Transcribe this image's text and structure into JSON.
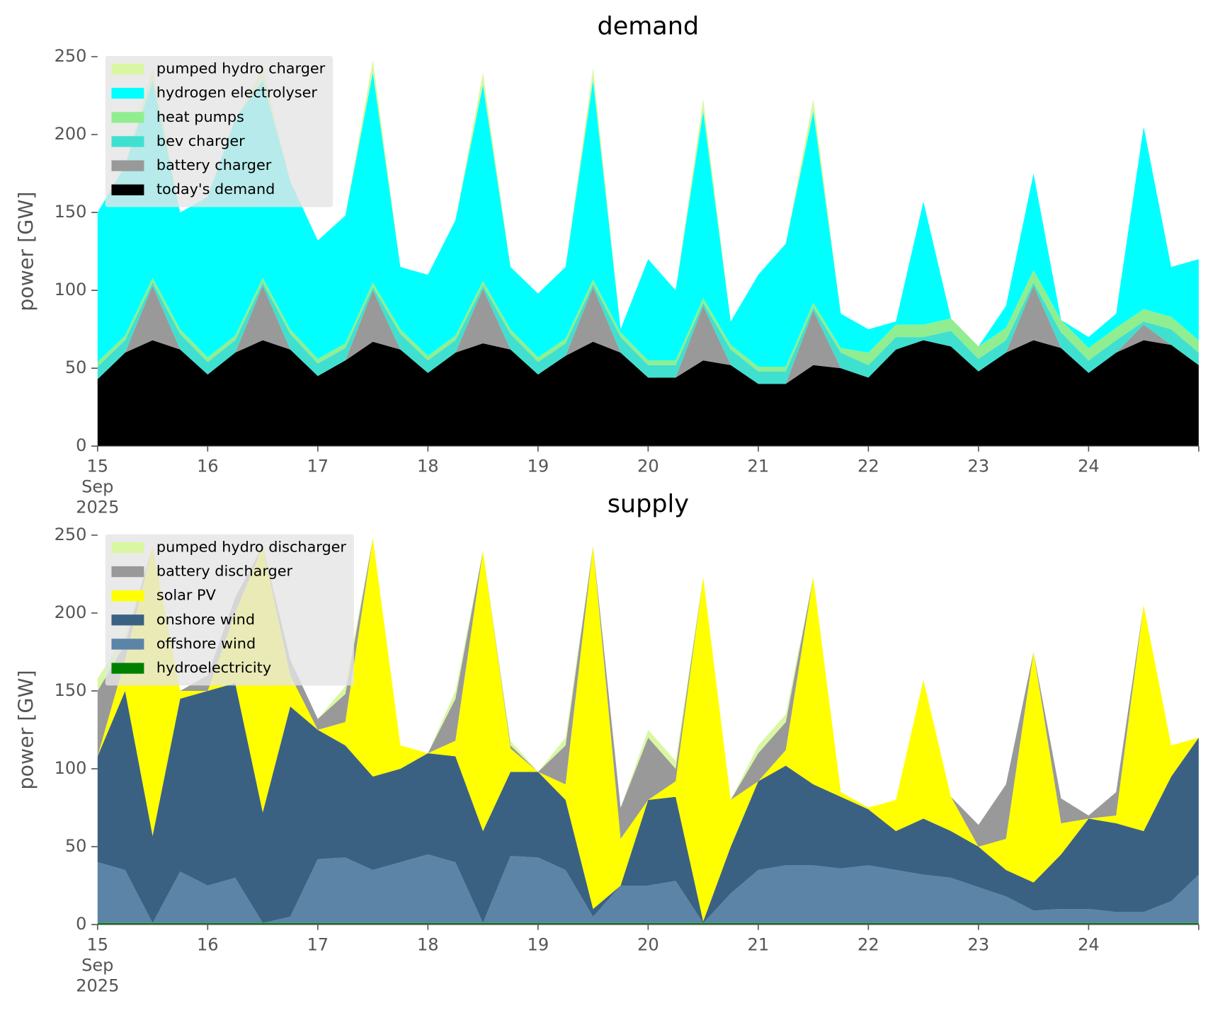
{
  "chart_data": [
    {
      "type": "stacked-area",
      "title": "demand",
      "y_label": "power [GW]",
      "legend": "upper left",
      "grid": false,
      "x": [
        15,
        15.25,
        15.5,
        15.75,
        16,
        16.25,
        16.5,
        16.75,
        17,
        17.25,
        17.5,
        17.75,
        18,
        18.25,
        18.5,
        18.75,
        19,
        19.25,
        19.5,
        19.75,
        20,
        20.25,
        20.5,
        20.75,
        21,
        21.25,
        21.5,
        21.75,
        22,
        22.25,
        22.5,
        22.75,
        23,
        23.25,
        23.5,
        23.75,
        24,
        24.25,
        24.5,
        24.75,
        25
      ],
      "xlim": [
        15,
        25
      ],
      "xticks": [
        {
          "value": 15,
          "label": "15\nSep\n2025"
        },
        16,
        17,
        18,
        19,
        20,
        21,
        22,
        23,
        24
      ],
      "ylim": [
        0,
        250
      ],
      "yticks": [
        0,
        50,
        100,
        150,
        200,
        250
      ],
      "series": [
        {
          "name": "pumped hydro charger",
          "color": "#d9f7a3",
          "values": [
            0,
            0,
            8,
            0,
            0,
            0,
            8,
            0,
            0,
            0,
            8,
            0,
            0,
            0,
            8,
            0,
            0,
            0,
            8,
            0,
            0,
            0,
            8,
            0,
            0,
            0,
            8,
            0,
            0,
            0,
            0,
            0,
            0,
            0,
            0,
            0,
            0,
            0,
            0,
            0,
            0
          ]
        },
        {
          "name": "hydrogen electrolyser",
          "color": "#00ffff",
          "values": [
            96,
            109,
            127,
            75,
            103,
            139,
            127,
            95,
            76,
            82,
            135,
            40,
            52,
            74,
            126,
            40,
            41,
            46,
            128,
            2,
            65,
            45,
            120,
            15,
            59,
            79,
            123,
            22,
            15,
            2,
            79,
            0,
            0,
            14,
            62,
            0,
            7,
            9,
            117,
            32,
            52
          ]
        },
        {
          "name": "heat pumps",
          "color": "#90ee90",
          "values": [
            3,
            3,
            3,
            3,
            3,
            3,
            3,
            3,
            3,
            3,
            3,
            3,
            3,
            3,
            3,
            3,
            3,
            3,
            3,
            3,
            3,
            3,
            3,
            3,
            3,
            3,
            3,
            3,
            8,
            8,
            8,
            8,
            8,
            8,
            8,
            8,
            8,
            8,
            8,
            8,
            8
          ]
        },
        {
          "name": "bev charger",
          "color": "#40e0d0",
          "values": [
            8,
            8,
            2,
            10,
            8,
            8,
            2,
            10,
            8,
            8,
            2,
            10,
            8,
            8,
            2,
            10,
            8,
            8,
            2,
            10,
            8,
            8,
            2,
            10,
            8,
            8,
            2,
            10,
            8,
            8,
            2,
            10,
            8,
            8,
            2,
            10,
            8,
            8,
            2,
            10,
            8
          ]
        },
        {
          "name": "battery charger",
          "color": "#999999",
          "values": [
            0,
            0,
            35,
            0,
            0,
            0,
            35,
            0,
            0,
            0,
            33,
            0,
            0,
            0,
            35,
            0,
            0,
            0,
            35,
            0,
            0,
            0,
            35,
            0,
            0,
            0,
            35,
            0,
            0,
            0,
            0,
            0,
            0,
            0,
            35,
            0,
            0,
            0,
            10,
            0,
            0
          ]
        },
        {
          "name": "today's demand",
          "color": "#000000",
          "values": [
            43,
            60,
            68,
            62,
            46,
            60,
            68,
            62,
            45,
            55,
            67,
            62,
            47,
            60,
            66,
            62,
            46,
            58,
            67,
            60,
            44,
            44,
            55,
            52,
            40,
            40,
            52,
            50,
            44,
            62,
            68,
            64,
            48,
            60,
            68,
            63,
            47,
            60,
            68,
            65,
            52
          ]
        }
      ]
    },
    {
      "type": "stacked-area",
      "title": "supply",
      "y_label": "power [GW]",
      "legend": "upper left",
      "grid": false,
      "x": [
        15,
        15.25,
        15.5,
        15.75,
        16,
        16.25,
        16.5,
        16.75,
        17,
        17.25,
        17.5,
        17.75,
        18,
        18.25,
        18.5,
        18.75,
        19,
        19.25,
        19.5,
        19.75,
        20,
        20.25,
        20.5,
        20.75,
        21,
        21.25,
        21.5,
        21.75,
        22,
        22.25,
        22.5,
        22.75,
        23,
        23.25,
        23.5,
        23.75,
        24,
        24.25,
        24.5,
        24.75,
        25
      ],
      "xlim": [
        15,
        25
      ],
      "xticks": [
        {
          "value": 15,
          "label": "15\nSep\n2025"
        },
        16,
        17,
        18,
        19,
        20,
        21,
        22,
        23,
        24
      ],
      "ylim": [
        0,
        250
      ],
      "yticks": [
        0,
        50,
        100,
        150,
        200,
        250
      ],
      "series": [
        {
          "name": "pumped hydro discharger",
          "color": "#d9f7a3",
          "values": [
            8,
            5,
            0,
            0,
            0,
            0,
            0,
            0,
            0,
            5,
            0,
            0,
            0,
            5,
            0,
            3,
            0,
            5,
            0,
            0,
            5,
            5,
            0,
            0,
            5,
            5,
            0,
            0,
            0,
            0,
            0,
            0,
            0,
            0,
            0,
            0,
            0,
            0,
            0,
            0,
            0
          ]
        },
        {
          "name": "battery discharger",
          "color": "#999999",
          "values": [
            42,
            10,
            0,
            0,
            10,
            10,
            0,
            10,
            7,
            18,
            0,
            0,
            0,
            27,
            0,
            2,
            0,
            25,
            0,
            20,
            40,
            8,
            0,
            0,
            18,
            18,
            0,
            0,
            0,
            0,
            0,
            0,
            14,
            35,
            0,
            16,
            2,
            15,
            0,
            0,
            0
          ]
        },
        {
          "name": "solar PV",
          "color": "#ffff00",
          "values": [
            0,
            20,
            186,
            5,
            0,
            45,
            171,
            20,
            0,
            15,
            153,
            15,
            0,
            10,
            180,
            15,
            0,
            10,
            233,
            30,
            0,
            10,
            221,
            30,
            0,
            10,
            133,
            3,
            1,
            20,
            89,
            22,
            0,
            20,
            148,
            20,
            0,
            5,
            145,
            20,
            0
          ]
        },
        {
          "name": "onshore wind",
          "color": "#3b6182",
          "values": [
            68,
            115,
            56,
            111,
            125,
            125,
            71,
            135,
            83,
            72,
            60,
            60,
            65,
            68,
            59,
            54,
            55,
            45,
            5,
            0,
            55,
            54,
            1,
            30,
            57,
            64,
            52,
            46,
            36,
            25,
            36,
            30,
            26,
            17,
            18,
            35,
            58,
            57,
            52,
            80,
            88
          ]
        },
        {
          "name": "offshore wind",
          "color": "#5c84a6",
          "values": [
            39,
            34,
            0,
            33,
            24,
            29,
            0,
            4,
            41,
            42,
            34,
            39,
            44,
            39,
            0,
            43,
            42,
            34,
            4,
            24,
            24,
            27,
            0,
            19,
            34,
            37,
            37,
            35,
            37,
            34,
            31,
            29,
            23,
            17,
            8,
            9,
            9,
            7,
            7,
            14,
            31
          ]
        },
        {
          "name": "hydroelectricity",
          "color": "#008000",
          "values": [
            1,
            1,
            1,
            1,
            1,
            1,
            1,
            1,
            1,
            1,
            1,
            1,
            1,
            1,
            1,
            1,
            1,
            1,
            1,
            1,
            1,
            1,
            1,
            1,
            1,
            1,
            1,
            1,
            1,
            1,
            1,
            1,
            1,
            1,
            1,
            1,
            1,
            1,
            1,
            1,
            1
          ]
        }
      ]
    }
  ]
}
